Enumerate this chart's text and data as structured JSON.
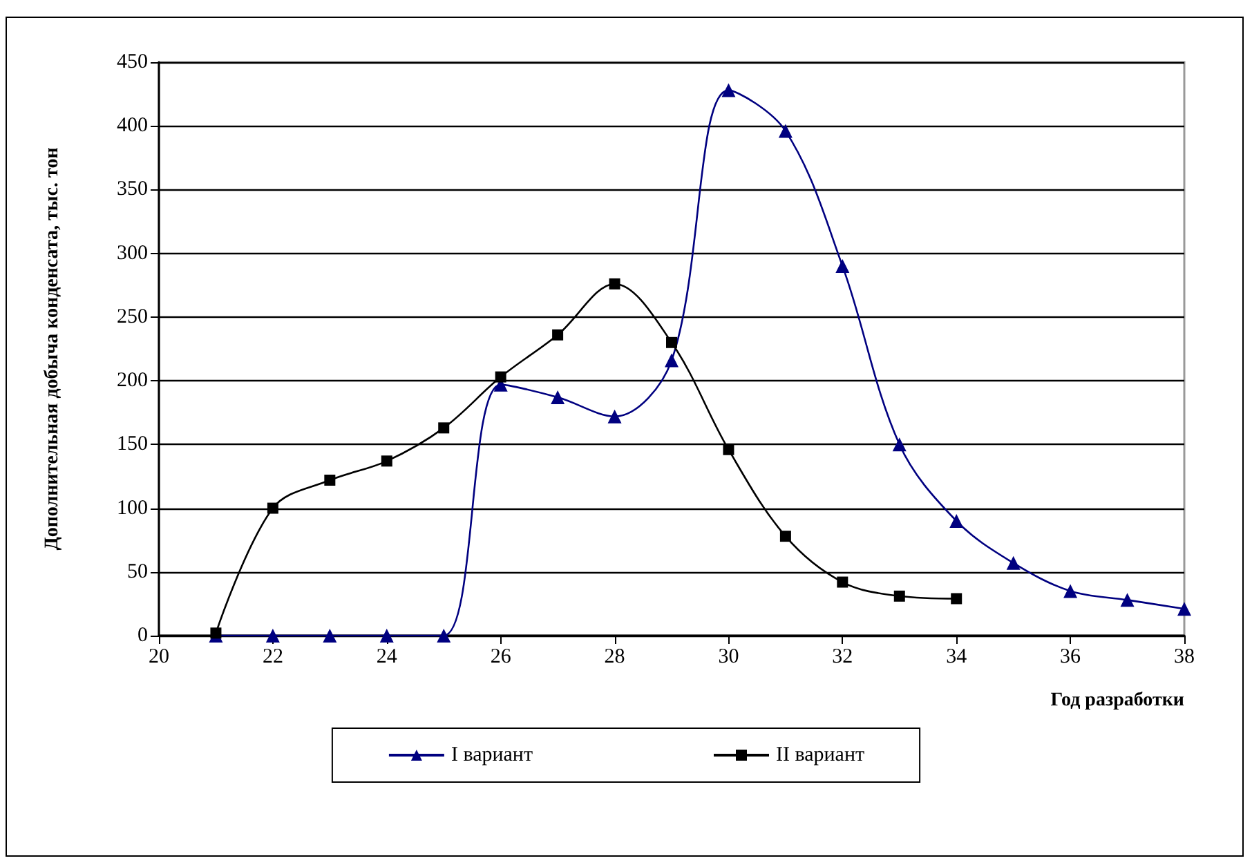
{
  "chart_data": {
    "type": "line",
    "xlabel": "Год разработки",
    "ylabel": "Дополнительная добыча конденсата, тыс. тон",
    "series": [
      {
        "name": "I вариант",
        "color": "#000080",
        "marker": "triangle",
        "x": [
          21,
          22,
          23,
          24,
          25,
          26,
          27,
          28,
          29,
          30,
          31,
          32,
          33,
          34,
          35,
          36,
          37,
          38
        ],
        "values": [
          0,
          0,
          0,
          0,
          0,
          197,
          187,
          172,
          216,
          428,
          396,
          290,
          150,
          90,
          57,
          35,
          28,
          21
        ]
      },
      {
        "name": "II вариант",
        "color": "#000000",
        "marker": "square",
        "x": [
          21,
          22,
          23,
          24,
          25,
          26,
          27,
          28,
          29,
          30,
          31,
          32,
          33,
          34
        ],
        "values": [
          2,
          100,
          122,
          137,
          163,
          203,
          236,
          276,
          230,
          146,
          78,
          42,
          31,
          29
        ]
      }
    ],
    "xlim": [
      20,
      38
    ],
    "xticks": [
      20,
      22,
      24,
      26,
      28,
      30,
      32,
      34,
      36,
      38
    ],
    "ylim": [
      0,
      450
    ],
    "yticks": [
      0,
      50,
      100,
      150,
      200,
      250,
      300,
      350,
      400,
      450
    ],
    "grid": "y",
    "legend": "bottom"
  }
}
